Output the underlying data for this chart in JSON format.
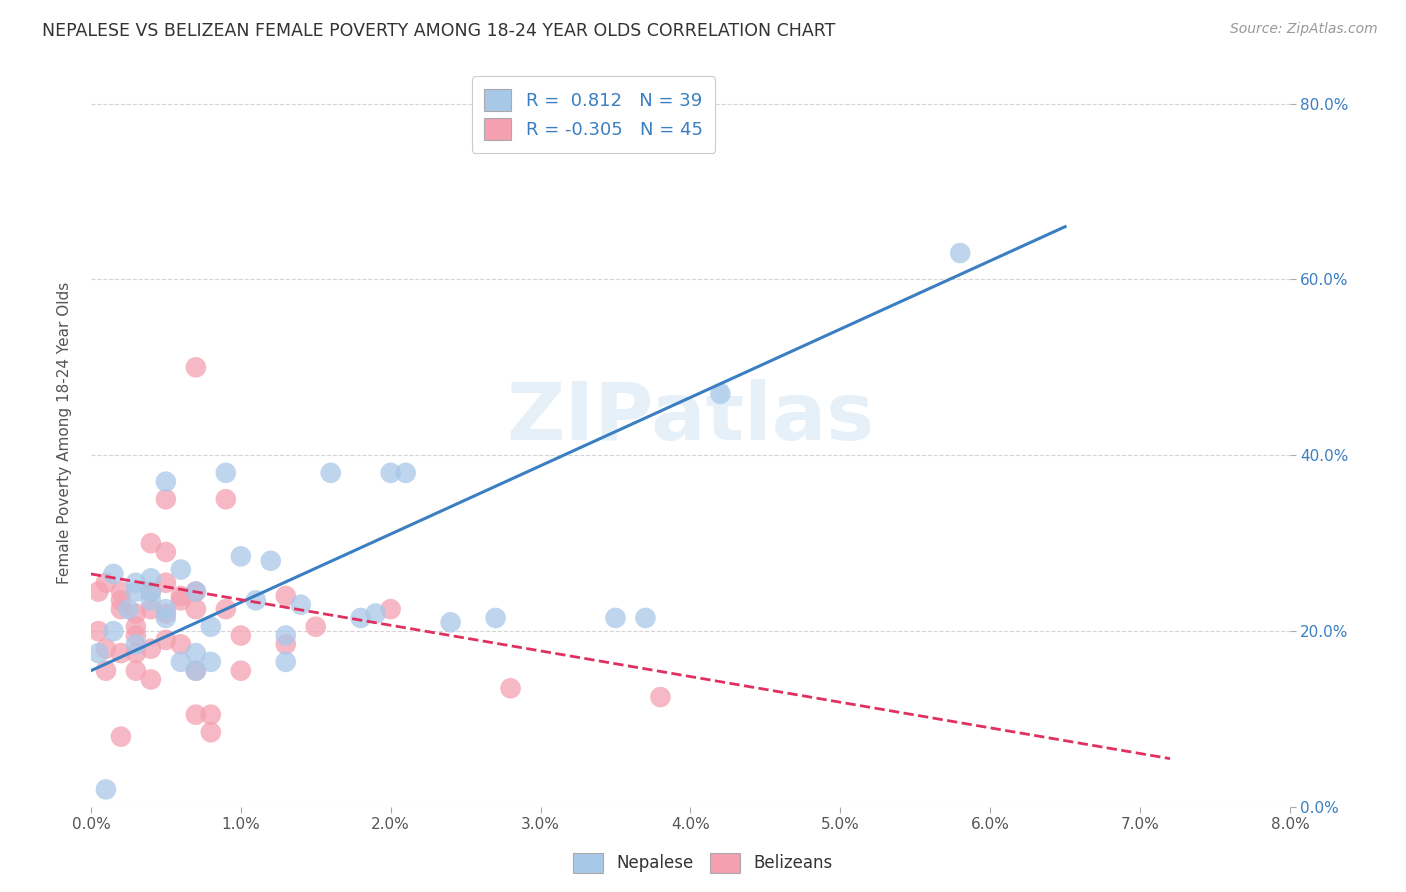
{
  "title": "NEPALESE VS BELIZEAN FEMALE POVERTY AMONG 18-24 YEAR OLDS CORRELATION CHART",
  "source": "Source: ZipAtlas.com",
  "ylabel": "Female Poverty Among 18-24 Year Olds",
  "xlim": [
    0.0,
    0.08
  ],
  "ylim": [
    0.0,
    0.85
  ],
  "xticks": [
    0.0,
    0.01,
    0.02,
    0.03,
    0.04,
    0.05,
    0.06,
    0.07,
    0.08
  ],
  "xtick_labels": [
    "0.0%",
    "1.0%",
    "2.0%",
    "3.0%",
    "4.0%",
    "5.0%",
    "6.0%",
    "7.0%",
    "8.0%"
  ],
  "yticks": [
    0.0,
    0.2,
    0.4,
    0.6,
    0.8
  ],
  "ytick_labels": [
    "0.0%",
    "20.0%",
    "40.0%",
    "60.0%",
    "80.0%"
  ],
  "watermark": "ZIPatlas",
  "legend_R1": "R =  0.812",
  "legend_N1": "N = 39",
  "legend_R2": "R = -0.305",
  "legend_N2": "N = 45",
  "nepalese_color": "#a8c8e8",
  "belizean_color": "#f4a0b0",
  "nepalese_line_color": "#3a7fc1",
  "belizean_line_color": "#e03060",
  "nepalese_scatter": [
    [
      0.0005,
      0.175
    ],
    [
      0.0015,
      0.2
    ],
    [
      0.0015,
      0.265
    ],
    [
      0.0025,
      0.225
    ],
    [
      0.003,
      0.245
    ],
    [
      0.003,
      0.185
    ],
    [
      0.003,
      0.255
    ],
    [
      0.004,
      0.235
    ],
    [
      0.004,
      0.245
    ],
    [
      0.004,
      0.26
    ],
    [
      0.005,
      0.225
    ],
    [
      0.005,
      0.215
    ],
    [
      0.005,
      0.37
    ],
    [
      0.006,
      0.165
    ],
    [
      0.006,
      0.27
    ],
    [
      0.007,
      0.245
    ],
    [
      0.007,
      0.155
    ],
    [
      0.007,
      0.175
    ],
    [
      0.008,
      0.165
    ],
    [
      0.008,
      0.205
    ],
    [
      0.009,
      0.38
    ],
    [
      0.01,
      0.285
    ],
    [
      0.011,
      0.235
    ],
    [
      0.012,
      0.28
    ],
    [
      0.013,
      0.195
    ],
    [
      0.013,
      0.165
    ],
    [
      0.014,
      0.23
    ],
    [
      0.016,
      0.38
    ],
    [
      0.018,
      0.215
    ],
    [
      0.019,
      0.22
    ],
    [
      0.02,
      0.38
    ],
    [
      0.021,
      0.38
    ],
    [
      0.024,
      0.21
    ],
    [
      0.027,
      0.215
    ],
    [
      0.035,
      0.215
    ],
    [
      0.037,
      0.215
    ],
    [
      0.042,
      0.47
    ],
    [
      0.058,
      0.63
    ],
    [
      0.001,
      0.02
    ]
  ],
  "belizean_scatter": [
    [
      0.0005,
      0.245
    ],
    [
      0.0005,
      0.2
    ],
    [
      0.001,
      0.18
    ],
    [
      0.001,
      0.155
    ],
    [
      0.001,
      0.255
    ],
    [
      0.002,
      0.235
    ],
    [
      0.002,
      0.225
    ],
    [
      0.002,
      0.175
    ],
    [
      0.002,
      0.08
    ],
    [
      0.002,
      0.245
    ],
    [
      0.003,
      0.22
    ],
    [
      0.003,
      0.205
    ],
    [
      0.003,
      0.195
    ],
    [
      0.003,
      0.175
    ],
    [
      0.003,
      0.155
    ],
    [
      0.004,
      0.3
    ],
    [
      0.004,
      0.245
    ],
    [
      0.004,
      0.225
    ],
    [
      0.004,
      0.18
    ],
    [
      0.004,
      0.145
    ],
    [
      0.005,
      0.29
    ],
    [
      0.005,
      0.255
    ],
    [
      0.005,
      0.22
    ],
    [
      0.005,
      0.19
    ],
    [
      0.005,
      0.35
    ],
    [
      0.006,
      0.24
    ],
    [
      0.006,
      0.235
    ],
    [
      0.006,
      0.185
    ],
    [
      0.007,
      0.245
    ],
    [
      0.007,
      0.155
    ],
    [
      0.007,
      0.105
    ],
    [
      0.007,
      0.225
    ],
    [
      0.008,
      0.105
    ],
    [
      0.008,
      0.085
    ],
    [
      0.009,
      0.225
    ],
    [
      0.009,
      0.35
    ],
    [
      0.01,
      0.195
    ],
    [
      0.01,
      0.155
    ],
    [
      0.013,
      0.24
    ],
    [
      0.013,
      0.185
    ],
    [
      0.015,
      0.205
    ],
    [
      0.02,
      0.225
    ],
    [
      0.028,
      0.135
    ],
    [
      0.038,
      0.125
    ],
    [
      0.007,
      0.5
    ]
  ],
  "nepalese_line": [
    [
      0.0,
      0.155
    ],
    [
      0.065,
      0.66
    ]
  ],
  "belizean_line": [
    [
      0.0,
      0.265
    ],
    [
      0.072,
      0.055
    ]
  ],
  "background_color": "#ffffff",
  "grid_color": "#d0d0d0"
}
